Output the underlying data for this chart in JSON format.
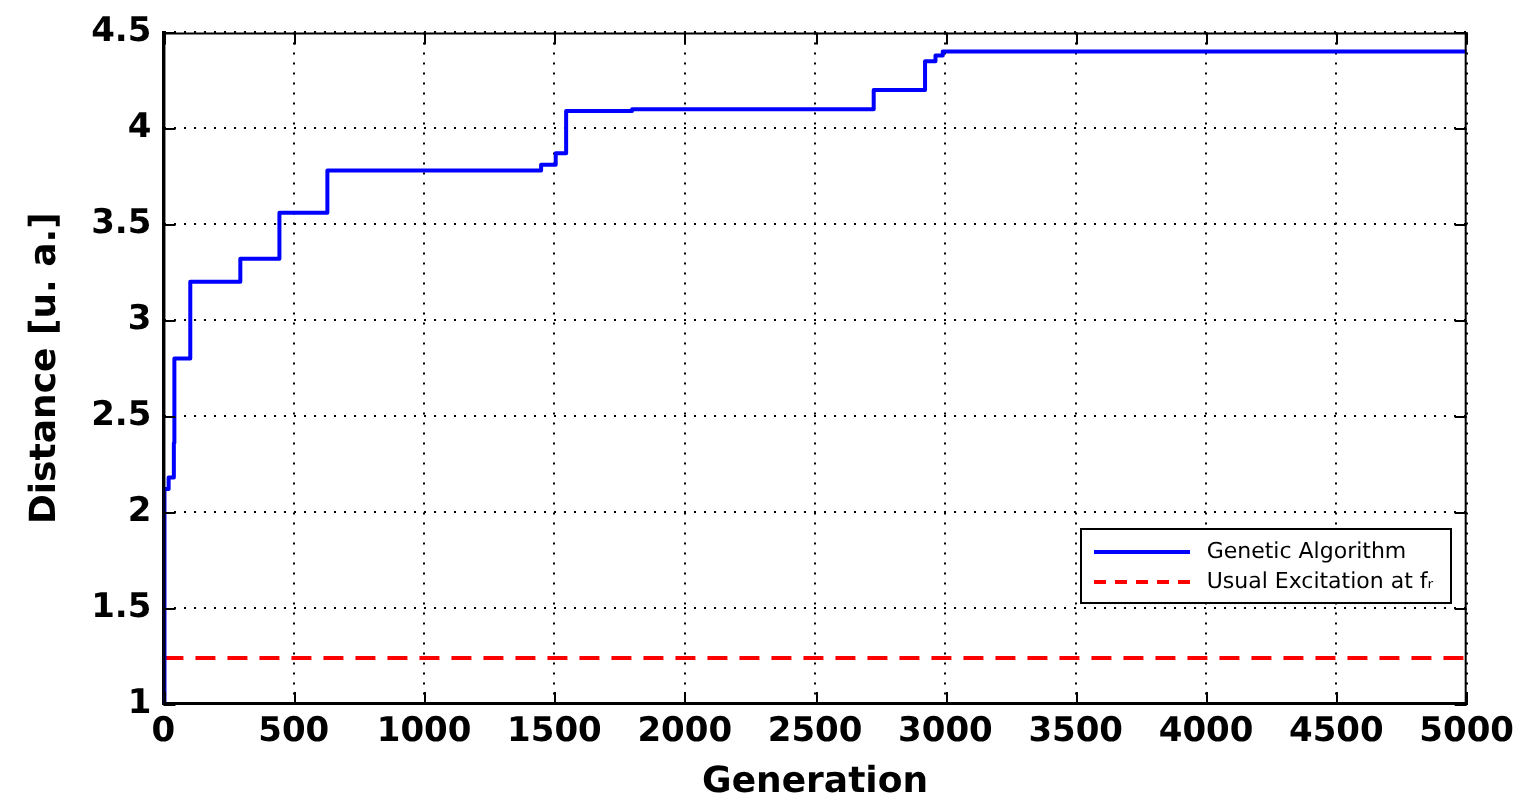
{
  "chart_data": {
    "type": "step",
    "xlabel": "Generation",
    "ylabel": "Distance [u. a.]",
    "series": [
      {
        "name": "Genetic Algorithm",
        "color": "#0000ff",
        "type": "step",
        "x": [
          0,
          4,
          20,
          40,
          42,
          103,
          295,
          445,
          629,
          1449,
          1505,
          1545,
          1798,
          2725,
          2922,
          2962,
          2990,
          5000
        ],
        "values": [
          1.0,
          2.12,
          2.18,
          2.36,
          2.8,
          3.2,
          3.32,
          3.56,
          3.78,
          3.81,
          3.87,
          4.09,
          4.1,
          4.2,
          4.35,
          4.38,
          4.4,
          4.4
        ]
      },
      {
        "name": "Usual Excitation at fᵣ",
        "color": "#ff0000",
        "type": "line",
        "line_style": "dashed",
        "x": [
          0,
          5000
        ],
        "values": [
          1.24,
          1.24
        ]
      }
    ],
    "xlim": [
      0,
      5000
    ],
    "xticks": [
      0,
      500,
      1000,
      1500,
      2000,
      2500,
      3000,
      3500,
      4000,
      4500,
      5000
    ],
    "ylim": [
      1,
      4.5
    ],
    "yticks": [
      1,
      1.5,
      2,
      2.5,
      3,
      3.5,
      4,
      4.5
    ],
    "grid": true,
    "legend": "bottom right",
    "marker": "none",
    "line_style": "solid"
  }
}
